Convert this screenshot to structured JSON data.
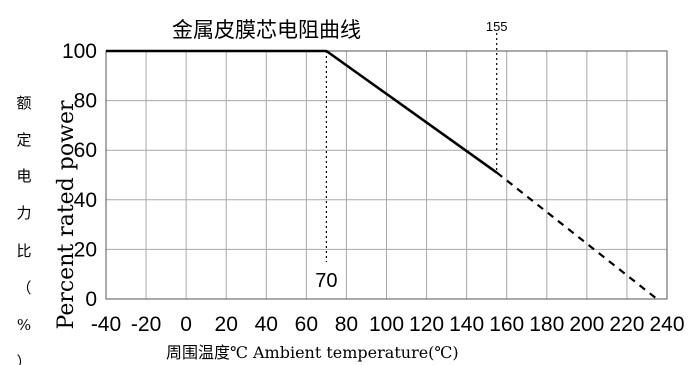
{
  "chart_data": {
    "type": "line",
    "title": "金属皮膜芯电阻曲线",
    "ylabel_en": "Percent rated power",
    "ylabel_cn": "额定电力比（%）",
    "xlabel": "周围温度℃ Ambient temperature(℃)",
    "x_ticks": [
      "-40",
      "-20",
      "0",
      "20",
      "40",
      "60",
      "80",
      "100",
      "120",
      "140",
      "160",
      "180",
      "200",
      "220",
      "240"
    ],
    "y_ticks": [
      "0",
      "20",
      "40",
      "60",
      "80",
      "100"
    ],
    "xlim": [
      -40,
      240
    ],
    "ylim": [
      0,
      100
    ],
    "grid": true,
    "series_solid": {
      "x": [
        -40,
        70,
        155
      ],
      "y": [
        100,
        100,
        51
      ]
    },
    "series_dashed": {
      "x": [
        155,
        235
      ],
      "y": [
        51,
        0
      ]
    },
    "annotations": [
      {
        "label": "70",
        "x": 70
      },
      {
        "label": "155",
        "x": 155
      }
    ]
  }
}
